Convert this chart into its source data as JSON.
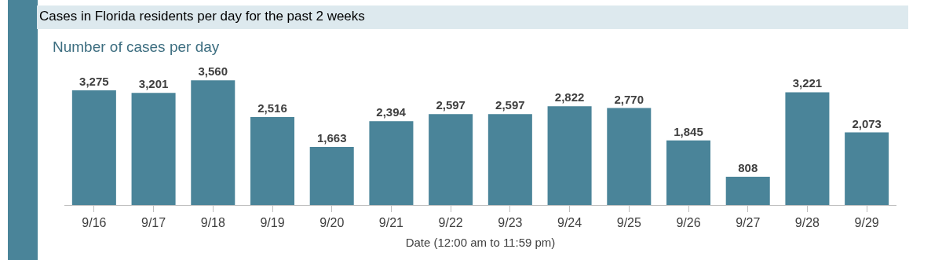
{
  "chart_data": {
    "type": "bar",
    "title": "Cases in Florida residents per day for the past 2 weeks",
    "subtitle": "Number of cases per day",
    "xlabel": "Date (12:00 am to 11:59 pm)",
    "categories": [
      "9/16",
      "9/17",
      "9/18",
      "9/19",
      "9/20",
      "9/21",
      "9/22",
      "9/23",
      "9/24",
      "9/25",
      "9/26",
      "9/27",
      "9/28",
      "9/29"
    ],
    "values": [
      3275,
      3201,
      3560,
      2516,
      1663,
      2394,
      2597,
      2597,
      2822,
      2770,
      1845,
      808,
      3221,
      2073
    ],
    "value_labels": [
      "3,275",
      "3,201",
      "3,560",
      "2,516",
      "1,663",
      "2,394",
      "2,597",
      "2,597",
      "2,822",
      "2,770",
      "1,845",
      "808",
      "3,221",
      "2,073"
    ],
    "color": "#4a8499",
    "grid": false,
    "legend": false
  }
}
